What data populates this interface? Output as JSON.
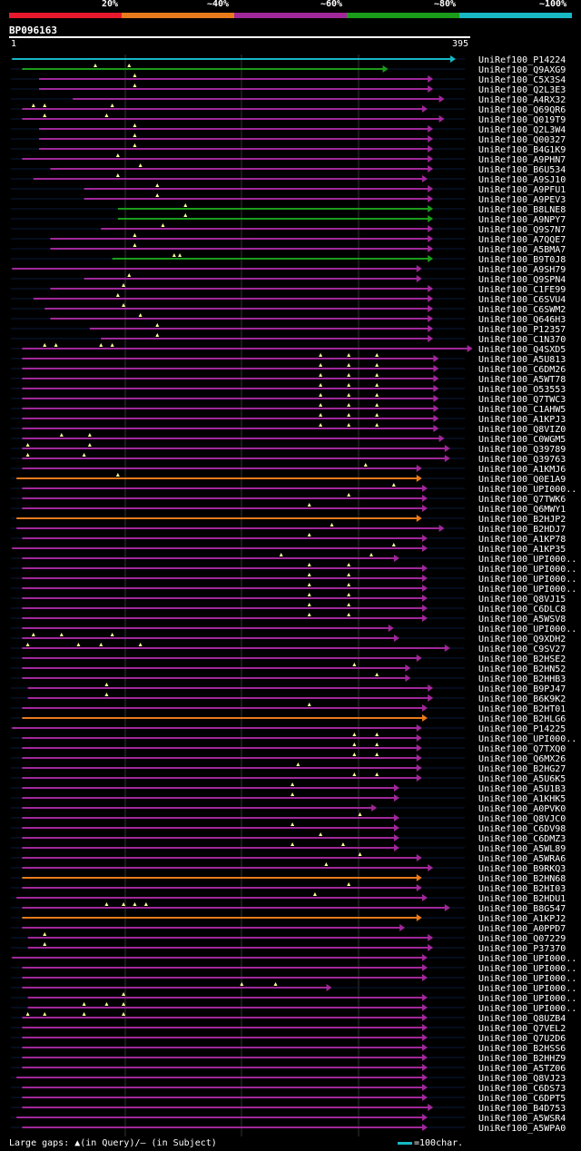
{
  "legend": {
    "labels": [
      "20%",
      "~40%",
      "~60%",
      "~80%",
      "~100%"
    ],
    "colors": [
      "#e8192c",
      "#e87a1c",
      "#a0289a",
      "#1a9c1a",
      "#17b8c4"
    ]
  },
  "query": {
    "id": "BP096163",
    "start": "1",
    "end": "395"
  },
  "footer": {
    "gaps_text": "Large gaps: ▲(in Query)/– (in Subject)",
    "scale_text": "=100char."
  },
  "chart_data": {
    "type": "alignment",
    "query_length": 395,
    "hits": [
      {
        "id": "UniRef100_P14224",
        "start": 1,
        "end": 395,
        "color": "#17b8c4",
        "gaps": []
      },
      {
        "id": "UniRef100_Q9AXG9",
        "start": 10,
        "end": 335,
        "color": "#1a9c1a",
        "gaps": [
          75,
          105
        ]
      },
      {
        "id": "UniRef100_C5X3S4",
        "start": 25,
        "end": 375,
        "color": "#a0289a",
        "gaps": [
          110
        ]
      },
      {
        "id": "UniRef100_Q2L3E3",
        "start": 25,
        "end": 375,
        "color": "#a0289a",
        "gaps": [
          110
        ]
      },
      {
        "id": "UniRef100_A4RX32",
        "start": 55,
        "end": 385,
        "color": "#a0289a",
        "gaps": []
      },
      {
        "id": "UniRef100_Q69QR6",
        "start": 10,
        "end": 370,
        "color": "#a0289a",
        "gaps": [
          20,
          30,
          90
        ]
      },
      {
        "id": "UniRef100_Q019T9",
        "start": 10,
        "end": 385,
        "color": "#a0289a",
        "gaps": [
          30,
          85
        ]
      },
      {
        "id": "UniRef100_Q2L3W4",
        "start": 25,
        "end": 375,
        "color": "#a0289a",
        "gaps": [
          110
        ]
      },
      {
        "id": "UniRef100_Q00327",
        "start": 25,
        "end": 375,
        "color": "#a0289a",
        "gaps": [
          110
        ]
      },
      {
        "id": "UniRef100_B4G1K9",
        "start": 25,
        "end": 375,
        "color": "#a0289a",
        "gaps": [
          110
        ]
      },
      {
        "id": "UniRef100_A9PHN7",
        "start": 10,
        "end": 375,
        "color": "#a0289a",
        "gaps": [
          95
        ]
      },
      {
        "id": "UniRef100_B6U534",
        "start": 35,
        "end": 375,
        "color": "#a0289a",
        "gaps": [
          115
        ]
      },
      {
        "id": "UniRef100_A9SJ10",
        "start": 20,
        "end": 370,
        "color": "#a0289a",
        "gaps": [
          95
        ]
      },
      {
        "id": "UniRef100_A9PFU1",
        "start": 65,
        "end": 375,
        "color": "#a0289a",
        "gaps": [
          130
        ]
      },
      {
        "id": "UniRef100_A9PEV3",
        "start": 65,
        "end": 375,
        "color": "#a0289a",
        "gaps": [
          130
        ]
      },
      {
        "id": "UniRef100_B8LNE8",
        "start": 95,
        "end": 375,
        "color": "#1a9c1a",
        "gaps": [
          155
        ]
      },
      {
        "id": "UniRef100_A9NPY7",
        "start": 95,
        "end": 375,
        "color": "#1a9c1a",
        "gaps": [
          155
        ]
      },
      {
        "id": "UniRef100_Q9S7N7",
        "start": 80,
        "end": 375,
        "color": "#a0289a",
        "gaps": [
          135
        ]
      },
      {
        "id": "UniRef100_A7QQE7",
        "start": 35,
        "end": 375,
        "color": "#a0289a",
        "gaps": [
          110
        ]
      },
      {
        "id": "UniRef100_A5BMA7",
        "start": 35,
        "end": 375,
        "color": "#a0289a",
        "gaps": [
          110
        ]
      },
      {
        "id": "UniRef100_B9T0J8",
        "start": 90,
        "end": 375,
        "color": "#1a9c1a",
        "gaps": [
          145,
          150
        ]
      },
      {
        "id": "UniRef100_A9SH79",
        "start": 1,
        "end": 365,
        "color": "#a0289a",
        "gaps": []
      },
      {
        "id": "UniRef100_Q9SPN4",
        "start": 65,
        "end": 365,
        "color": "#a0289a",
        "gaps": [
          105
        ]
      },
      {
        "id": "UniRef100_C1FE99",
        "start": 35,
        "end": 375,
        "color": "#a0289a",
        "gaps": [
          100
        ]
      },
      {
        "id": "UniRef100_C6SVU4",
        "start": 20,
        "end": 375,
        "color": "#a0289a",
        "gaps": [
          95
        ]
      },
      {
        "id": "UniRef100_C6SWM2",
        "start": 30,
        "end": 375,
        "color": "#a0289a",
        "gaps": [
          100
        ]
      },
      {
        "id": "UniRef100_Q646H3",
        "start": 35,
        "end": 375,
        "color": "#a0289a",
        "gaps": [
          115
        ]
      },
      {
        "id": "UniRef100_P12357",
        "start": 70,
        "end": 375,
        "color": "#a0289a",
        "gaps": [
          130
        ]
      },
      {
        "id": "UniRef100_C1N370",
        "start": 80,
        "end": 375,
        "color": "#a0289a",
        "gaps": [
          130
        ]
      },
      {
        "id": "UniRef100_Q4SXD5",
        "start": 10,
        "end": 410,
        "color": "#a0289a",
        "gaps": [
          30,
          40,
          80,
          90
        ]
      },
      {
        "id": "UniRef100_A5U813",
        "start": 10,
        "end": 380,
        "color": "#a0289a",
        "gaps": [
          275,
          300,
          325
        ]
      },
      {
        "id": "UniRef100_C6DM26",
        "start": 10,
        "end": 380,
        "color": "#a0289a",
        "gaps": [
          275,
          300,
          325
        ]
      },
      {
        "id": "UniRef100_A5WT78",
        "start": 10,
        "end": 380,
        "color": "#a0289a",
        "gaps": [
          275,
          300,
          325
        ]
      },
      {
        "id": "UniRef100_O53553",
        "start": 10,
        "end": 380,
        "color": "#a0289a",
        "gaps": [
          275,
          300,
          325
        ]
      },
      {
        "id": "UniRef100_Q7TWC3",
        "start": 10,
        "end": 380,
        "color": "#a0289a",
        "gaps": [
          275,
          300,
          325
        ]
      },
      {
        "id": "UniRef100_C1AHW5",
        "start": 10,
        "end": 380,
        "color": "#a0289a",
        "gaps": [
          275,
          300,
          325
        ]
      },
      {
        "id": "UniRef100_A1KPJ3",
        "start": 10,
        "end": 380,
        "color": "#a0289a",
        "gaps": [
          275,
          300,
          325
        ]
      },
      {
        "id": "UniRef100_Q8VIZ0",
        "start": 10,
        "end": 380,
        "color": "#a0289a",
        "gaps": [
          275,
          300,
          325
        ]
      },
      {
        "id": "UniRef100_C0WGM5",
        "start": 10,
        "end": 385,
        "color": "#a0289a",
        "gaps": [
          45,
          70
        ]
      },
      {
        "id": "UniRef100_Q39789",
        "start": 10,
        "end": 390,
        "color": "#a0289a",
        "gaps": [
          15,
          70
        ]
      },
      {
        "id": "UniRef100_Q39763",
        "start": 10,
        "end": 390,
        "color": "#a0289a",
        "gaps": [
          15,
          65
        ]
      },
      {
        "id": "UniRef100_A1KMJ6",
        "start": 10,
        "end": 365,
        "color": "#a0289a",
        "gaps": [
          315
        ]
      },
      {
        "id": "UniRef100_Q0E1A9",
        "start": 5,
        "end": 365,
        "color": "#e87a1c",
        "gaps": [
          95
        ]
      },
      {
        "id": "UniRef100_UPI000..",
        "start": 10,
        "end": 370,
        "color": "#a0289a",
        "gaps": [
          340
        ]
      },
      {
        "id": "UniRef100_Q7TWK6",
        "start": 10,
        "end": 370,
        "color": "#a0289a",
        "gaps": [
          300
        ]
      },
      {
        "id": "UniRef100_Q6MWY1",
        "start": 10,
        "end": 370,
        "color": "#a0289a",
        "gaps": [
          265
        ]
      },
      {
        "id": "UniRef100_B2HJP2",
        "start": 5,
        "end": 365,
        "color": "#e87a1c",
        "gaps": []
      },
      {
        "id": "UniRef100_B2HDJ7",
        "start": 5,
        "end": 385,
        "color": "#a0289a",
        "gaps": [
          285
        ]
      },
      {
        "id": "UniRef100_A1KP78",
        "start": 10,
        "end": 370,
        "color": "#a0289a",
        "gaps": [
          265
        ]
      },
      {
        "id": "UniRef100_A1KP35",
        "start": 1,
        "end": 370,
        "color": "#a0289a",
        "gaps": [
          340
        ]
      },
      {
        "id": "UniRef100_UPI000..b",
        "start": 10,
        "end": 345,
        "color": "#a0289a",
        "gaps": [
          240,
          320
        ]
      },
      {
        "id": "UniRef100_UPI000..c",
        "start": 10,
        "end": 370,
        "color": "#a0289a",
        "gaps": [
          265,
          300
        ]
      },
      {
        "id": "UniRef100_UPI000..d",
        "start": 10,
        "end": 370,
        "color": "#a0289a",
        "gaps": [
          265,
          300
        ]
      },
      {
        "id": "UniRef100_UPI000..e",
        "start": 10,
        "end": 370,
        "color": "#a0289a",
        "gaps": [
          265,
          300
        ]
      },
      {
        "id": "UniRef100_Q8VJ15",
        "start": 10,
        "end": 370,
        "color": "#a0289a",
        "gaps": [
          265,
          300
        ]
      },
      {
        "id": "UniRef100_C6DLC8",
        "start": 10,
        "end": 370,
        "color": "#a0289a",
        "gaps": [
          265,
          300
        ]
      },
      {
        "id": "UniRef100_A5WSV8",
        "start": 10,
        "end": 370,
        "color": "#a0289a",
        "gaps": [
          265,
          300
        ]
      },
      {
        "id": "UniRef100_UPI000..f",
        "start": 10,
        "end": 340,
        "color": "#a0289a",
        "gaps": []
      },
      {
        "id": "UniRef100_Q9XDH2",
        "start": 10,
        "end": 345,
        "color": "#a0289a",
        "gaps": [
          20,
          45,
          90
        ]
      },
      {
        "id": "UniRef100_C9SV27",
        "start": 10,
        "end": 390,
        "color": "#a0289a",
        "gaps": [
          15,
          60,
          80,
          115
        ]
      },
      {
        "id": "UniRef100_B2HSE2",
        "start": 10,
        "end": 365,
        "color": "#a0289a",
        "gaps": []
      },
      {
        "id": "UniRef100_B2HN52",
        "start": 10,
        "end": 355,
        "color": "#a0289a",
        "gaps": [
          305
        ]
      },
      {
        "id": "UniRef100_B2HHB3",
        "start": 10,
        "end": 355,
        "color": "#a0289a",
        "gaps": [
          325
        ]
      },
      {
        "id": "UniRef100_B9PJ47",
        "start": 15,
        "end": 375,
        "color": "#a0289a",
        "gaps": [
          85
        ]
      },
      {
        "id": "UniRef100_B6K9K2",
        "start": 15,
        "end": 375,
        "color": "#a0289a",
        "gaps": [
          85
        ]
      },
      {
        "id": "UniRef100_B2HT01",
        "start": 10,
        "end": 370,
        "color": "#a0289a",
        "gaps": [
          265
        ]
      },
      {
        "id": "UniRef100_B2HLG6",
        "start": 10,
        "end": 370,
        "color": "#e87a1c",
        "gaps": []
      },
      {
        "id": "UniRef100_P14225",
        "start": 1,
        "end": 365,
        "color": "#a0289a",
        "gaps": []
      },
      {
        "id": "UniRef100_UPI000..g",
        "start": 10,
        "end": 365,
        "color": "#a0289a",
        "gaps": [
          305,
          325
        ]
      },
      {
        "id": "UniRef100_Q7TXQ0",
        "start": 10,
        "end": 365,
        "color": "#a0289a",
        "gaps": [
          305,
          325
        ]
      },
      {
        "id": "UniRef100_Q6MX26",
        "start": 10,
        "end": 365,
        "color": "#a0289a",
        "gaps": [
          305,
          325
        ]
      },
      {
        "id": "UniRef100_B2HG27",
        "start": 10,
        "end": 365,
        "color": "#a0289a",
        "gaps": [
          255
        ]
      },
      {
        "id": "UniRef100_A5U6K5",
        "start": 10,
        "end": 365,
        "color": "#a0289a",
        "gaps": [
          305,
          325
        ]
      },
      {
        "id": "UniRef100_A5U1B3",
        "start": 10,
        "end": 345,
        "color": "#a0289a",
        "gaps": [
          250
        ]
      },
      {
        "id": "UniRef100_A1KHK5",
        "start": 10,
        "end": 345,
        "color": "#a0289a",
        "gaps": [
          250
        ]
      },
      {
        "id": "UniRef100_A0PVK0",
        "start": 10,
        "end": 325,
        "color": "#a0289a",
        "gaps": []
      },
      {
        "id": "UniRef100_Q8VJC0",
        "start": 10,
        "end": 345,
        "color": "#a0289a",
        "gaps": [
          310
        ]
      },
      {
        "id": "UniRef100_C6DV98",
        "start": 10,
        "end": 345,
        "color": "#a0289a",
        "gaps": [
          250
        ]
      },
      {
        "id": "UniRef100_C6DMZ3",
        "start": 10,
        "end": 345,
        "color": "#a0289a",
        "gaps": [
          275
        ]
      },
      {
        "id": "UniRef100_A5WL89",
        "start": 10,
        "end": 345,
        "color": "#a0289a",
        "gaps": [
          250,
          295
        ]
      },
      {
        "id": "UniRef100_A5WRA6",
        "start": 10,
        "end": 365,
        "color": "#a0289a",
        "gaps": [
          310
        ]
      },
      {
        "id": "UniRef100_B9RKQ3",
        "start": 10,
        "end": 375,
        "color": "#a0289a",
        "gaps": [
          280
        ]
      },
      {
        "id": "UniRef100_B2HN68",
        "start": 10,
        "end": 365,
        "color": "#e87a1c",
        "gaps": []
      },
      {
        "id": "UniRef100_B2HI03",
        "start": 10,
        "end": 365,
        "color": "#a0289a",
        "gaps": [
          300
        ]
      },
      {
        "id": "UniRef100_B2HDU1",
        "start": 5,
        "end": 370,
        "color": "#a0289a",
        "gaps": [
          270
        ]
      },
      {
        "id": "UniRef100_B8G547",
        "start": 10,
        "end": 390,
        "color": "#a0289a",
        "gaps": [
          85,
          100,
          110,
          120
        ]
      },
      {
        "id": "UniRef100_A1KPJ2",
        "start": 10,
        "end": 365,
        "color": "#e87a1c",
        "gaps": []
      },
      {
        "id": "UniRef100_A0PPD7",
        "start": 10,
        "end": 350,
        "color": "#a0289a",
        "gaps": []
      },
      {
        "id": "UniRef100_Q07229",
        "start": 15,
        "end": 375,
        "color": "#a0289a",
        "gaps": [
          30
        ]
      },
      {
        "id": "UniRef100_P37370",
        "start": 15,
        "end": 375,
        "color": "#a0289a",
        "gaps": [
          30
        ]
      },
      {
        "id": "UniRef100_UPI000..h",
        "start": 1,
        "end": 370,
        "color": "#a0289a",
        "gaps": []
      },
      {
        "id": "UniRef100_UPI000..i",
        "start": 10,
        "end": 370,
        "color": "#a0289a",
        "gaps": []
      },
      {
        "id": "UniRef100_UPI000..j",
        "start": 10,
        "end": 370,
        "color": "#a0289a",
        "gaps": []
      },
      {
        "id": "UniRef100_UPI000..k",
        "start": 10,
        "end": 285,
        "color": "#a0289a",
        "gaps": [
          205,
          235
        ]
      },
      {
        "id": "UniRef100_UPI000..l",
        "start": 15,
        "end": 370,
        "color": "#a0289a",
        "gaps": [
          100
        ]
      },
      {
        "id": "UniRef100_UPI000..m",
        "start": 15,
        "end": 370,
        "color": "#a0289a",
        "gaps": [
          65,
          85,
          100
        ]
      },
      {
        "id": "UniRef100_Q8UZB4",
        "start": 10,
        "end": 370,
        "color": "#a0289a",
        "gaps": [
          15,
          30,
          65,
          100
        ]
      },
      {
        "id": "UniRef100_Q7VEL2",
        "start": 10,
        "end": 370,
        "color": "#a0289a",
        "gaps": []
      },
      {
        "id": "UniRef100_Q7U2D6",
        "start": 10,
        "end": 370,
        "color": "#a0289a",
        "gaps": []
      },
      {
        "id": "UniRef100_B2HSS6",
        "start": 10,
        "end": 370,
        "color": "#a0289a",
        "gaps": []
      },
      {
        "id": "UniRef100_B2HHZ9",
        "start": 10,
        "end": 370,
        "color": "#a0289a",
        "gaps": []
      },
      {
        "id": "UniRef100_A5TZ06",
        "start": 10,
        "end": 370,
        "color": "#a0289a",
        "gaps": []
      },
      {
        "id": "UniRef100_Q8VJ23",
        "start": 5,
        "end": 370,
        "color": "#a0289a",
        "gaps": []
      },
      {
        "id": "UniRef100_C6DS73",
        "start": 10,
        "end": 370,
        "color": "#a0289a",
        "gaps": []
      },
      {
        "id": "UniRef100_C6DPT5",
        "start": 10,
        "end": 370,
        "color": "#a0289a",
        "gaps": []
      },
      {
        "id": "UniRef100_B4D753",
        "start": 10,
        "end": 375,
        "color": "#a0289a",
        "gaps": []
      },
      {
        "id": "UniRef100_A5WSR4",
        "start": 5,
        "end": 370,
        "color": "#a0289a",
        "gaps": []
      },
      {
        "id": "UniRef100_A5WPA0",
        "start": 10,
        "end": 370,
        "color": "#a0289a",
        "gaps": []
      }
    ]
  }
}
